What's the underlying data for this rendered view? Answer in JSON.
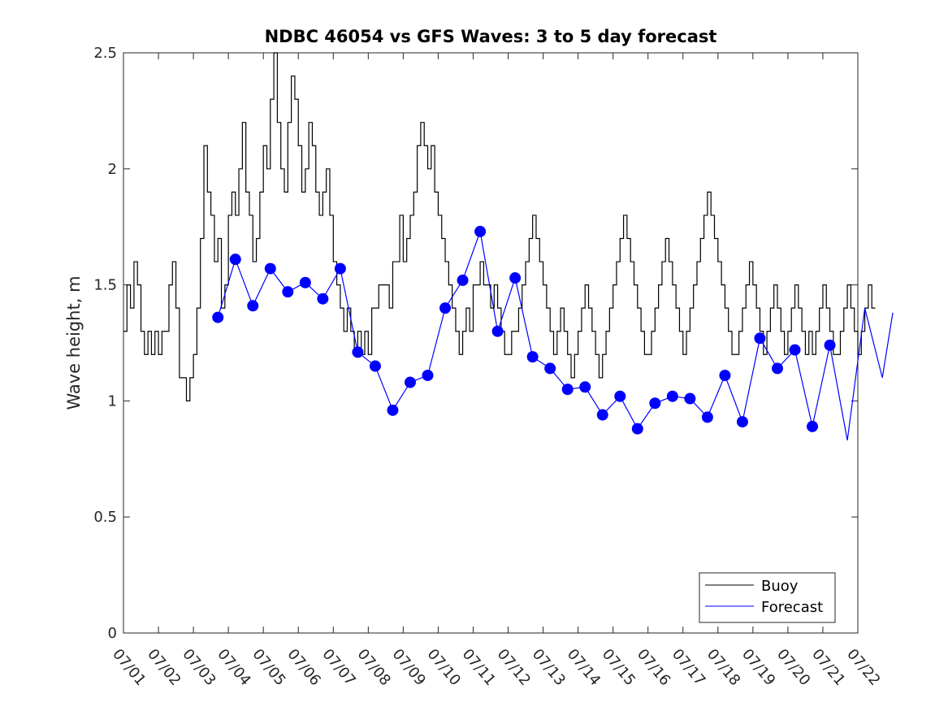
{
  "chart_data": {
    "type": "line",
    "title": "NDBC 46054 vs GFS Waves: 3 to 5 day forecast",
    "xlabel": "",
    "ylabel": "Wave height, m",
    "xlim": [
      "07/01",
      "07/22"
    ],
    "ylim": [
      0,
      2.5
    ],
    "x_ticks": [
      "07/01",
      "07/02",
      "07/03",
      "07/04",
      "07/05",
      "07/06",
      "07/07",
      "07/08",
      "07/09",
      "07/10",
      "07/11",
      "07/12",
      "07/13",
      "07/14",
      "07/15",
      "07/16",
      "07/17",
      "07/18",
      "07/19",
      "07/20",
      "07/21",
      "07/22"
    ],
    "y_ticks": [
      "0",
      "0.5",
      "1",
      "1.5",
      "2",
      "2.5"
    ],
    "grid": false,
    "legend_position": "bottom-right",
    "colors": {
      "buoy": "#000000",
      "forecast": "#0000ff"
    },
    "series": [
      {
        "name": "Buoy",
        "x": [
          0.0,
          0.1,
          0.2,
          0.3,
          0.4,
          0.5,
          0.6,
          0.7,
          0.8,
          0.9,
          1.0,
          1.1,
          1.2,
          1.3,
          1.4,
          1.5,
          1.6,
          1.7,
          1.8,
          1.9,
          2.0,
          2.1,
          2.2,
          2.3,
          2.4,
          2.5,
          2.6,
          2.7,
          2.8,
          2.9,
          3.0,
          3.1,
          3.2,
          3.3,
          3.4,
          3.5,
          3.6,
          3.7,
          3.8,
          3.9,
          4.0,
          4.1,
          4.2,
          4.3,
          4.4,
          4.5,
          4.6,
          4.7,
          4.8,
          4.9,
          5.0,
          5.1,
          5.2,
          5.3,
          5.4,
          5.5,
          5.6,
          5.7,
          5.8,
          5.9,
          6.0,
          6.1,
          6.2,
          6.3,
          6.4,
          6.5,
          6.6,
          6.7,
          6.8,
          6.9,
          7.0,
          7.1,
          7.2,
          7.3,
          7.4,
          7.5,
          7.6,
          7.7,
          7.8,
          7.9,
          8.0,
          8.1,
          8.2,
          8.3,
          8.4,
          8.5,
          8.6,
          8.7,
          8.8,
          8.9,
          9.0,
          9.1,
          9.2,
          9.3,
          9.4,
          9.5,
          9.6,
          9.7,
          9.8,
          9.9,
          10.0,
          10.1,
          10.2,
          10.3,
          10.4,
          10.5,
          10.6,
          10.7,
          10.8,
          10.9,
          11.0,
          11.1,
          11.2,
          11.3,
          11.4,
          11.5,
          11.6,
          11.7,
          11.8,
          11.9,
          12.0,
          12.1,
          12.2,
          12.3,
          12.4,
          12.5,
          12.6,
          12.7,
          12.8,
          12.9,
          13.0,
          13.1,
          13.2,
          13.3,
          13.4,
          13.5,
          13.6,
          13.7,
          13.8,
          13.9,
          14.0,
          14.1,
          14.2,
          14.3,
          14.4,
          14.5,
          14.6,
          14.7,
          14.8,
          14.9,
          15.0,
          15.1,
          15.2,
          15.3,
          15.4,
          15.5,
          15.6,
          15.7,
          15.8,
          15.9,
          16.0,
          16.1,
          16.2,
          16.3,
          16.4,
          16.5,
          16.6,
          16.7,
          16.8,
          16.9,
          17.0,
          17.1,
          17.2,
          17.3,
          17.4,
          17.5,
          17.6,
          17.7,
          17.8,
          17.9,
          18.0,
          18.1,
          18.2,
          18.3,
          18.4,
          18.5,
          18.6,
          18.7,
          18.8,
          18.9,
          19.0,
          19.1,
          19.2,
          19.3,
          19.4,
          19.5,
          19.6,
          19.7,
          19.8,
          19.9,
          20.0,
          20.1,
          20.2,
          20.3,
          20.4,
          20.5,
          20.6,
          20.7,
          20.8,
          20.9,
          21.0,
          21.1,
          21.2,
          21.3,
          21.4,
          21.5
        ],
        "y": [
          1.3,
          1.5,
          1.4,
          1.6,
          1.5,
          1.3,
          1.2,
          1.3,
          1.2,
          1.3,
          1.2,
          1.3,
          1.3,
          1.5,
          1.6,
          1.4,
          1.1,
          1.1,
          1.0,
          1.1,
          1.2,
          1.4,
          1.7,
          2.1,
          1.9,
          1.8,
          1.6,
          1.7,
          1.4,
          1.5,
          1.8,
          1.9,
          1.8,
          2.0,
          2.2,
          1.9,
          1.8,
          1.6,
          1.7,
          1.9,
          2.1,
          2.0,
          2.3,
          2.5,
          2.2,
          2.0,
          1.9,
          2.2,
          2.4,
          2.3,
          2.1,
          1.9,
          2.0,
          2.2,
          2.1,
          1.9,
          1.8,
          1.9,
          2.0,
          1.8,
          1.6,
          1.5,
          1.4,
          1.3,
          1.4,
          1.3,
          1.2,
          1.3,
          1.2,
          1.3,
          1.2,
          1.4,
          1.4,
          1.5,
          1.5,
          1.5,
          1.4,
          1.6,
          1.6,
          1.8,
          1.6,
          1.7,
          1.8,
          1.9,
          2.1,
          2.2,
          2.1,
          2.0,
          2.1,
          1.9,
          1.8,
          1.7,
          1.6,
          1.5,
          1.4,
          1.3,
          1.2,
          1.3,
          1.4,
          1.3,
          1.5,
          1.5,
          1.6,
          1.5,
          1.5,
          1.4,
          1.5,
          1.4,
          1.3,
          1.2,
          1.2,
          1.3,
          1.3,
          1.4,
          1.5,
          1.6,
          1.7,
          1.8,
          1.7,
          1.6,
          1.5,
          1.4,
          1.3,
          1.2,
          1.3,
          1.4,
          1.3,
          1.2,
          1.1,
          1.2,
          1.3,
          1.4,
          1.5,
          1.4,
          1.3,
          1.2,
          1.1,
          1.2,
          1.3,
          1.4,
          1.5,
          1.6,
          1.7,
          1.8,
          1.7,
          1.6,
          1.5,
          1.4,
          1.3,
          1.2,
          1.2,
          1.3,
          1.4,
          1.5,
          1.6,
          1.7,
          1.6,
          1.5,
          1.4,
          1.3,
          1.2,
          1.3,
          1.4,
          1.5,
          1.6,
          1.7,
          1.8,
          1.9,
          1.8,
          1.7,
          1.6,
          1.5,
          1.4,
          1.3,
          1.2,
          1.2,
          1.3,
          1.4,
          1.5,
          1.6,
          1.5,
          1.4,
          1.3,
          1.2,
          1.3,
          1.4,
          1.5,
          1.4,
          1.3,
          1.2,
          1.3,
          1.4,
          1.5,
          1.4,
          1.3,
          1.2,
          1.3,
          1.2,
          1.3,
          1.4,
          1.5,
          1.4,
          1.3,
          1.2,
          1.2,
          1.3,
          1.4,
          1.5,
          1.4,
          1.3,
          1.2,
          1.3,
          1.4,
          1.5,
          1.4,
          1.4
        ]
      },
      {
        "name": "Forecast",
        "x": [
          2.7,
          3.2,
          3.7,
          4.2,
          4.7,
          5.2,
          5.7,
          6.2,
          6.7,
          7.2,
          7.7,
          8.2,
          8.7,
          9.2,
          9.7,
          10.2,
          10.7,
          11.2,
          11.7,
          12.2,
          12.7,
          13.2,
          13.7,
          14.2,
          14.7,
          15.2,
          15.7,
          16.2,
          16.7,
          17.2,
          17.7,
          18.2,
          18.7,
          19.2,
          19.7,
          20.2,
          20.7,
          21.2,
          21.7,
          22.0
        ],
        "y": [
          1.36,
          1.61,
          1.41,
          1.57,
          1.47,
          1.51,
          1.44,
          1.57,
          1.21,
          1.15,
          0.96,
          1.08,
          1.11,
          1.4,
          1.52,
          1.73,
          1.3,
          1.53,
          1.19,
          1.14,
          1.05,
          1.06,
          0.94,
          1.02,
          0.88,
          0.99,
          1.02,
          1.01,
          0.93,
          1.11,
          0.91,
          1.27,
          1.14,
          1.22,
          0.89,
          1.24,
          0.83,
          1.4,
          1.1,
          1.38
        ]
      }
    ],
    "forecast_markers": {
      "x": [
        2.7,
        3.2,
        3.7,
        4.2,
        4.7,
        5.2,
        5.7,
        6.2,
        6.7,
        7.2,
        7.7,
        8.2,
        8.7,
        9.2,
        9.7,
        10.2,
        10.7,
        11.2,
        11.7,
        12.2,
        12.7,
        13.2,
        13.7,
        14.2,
        14.7,
        15.2,
        15.7,
        16.2,
        16.7,
        17.2,
        17.7,
        18.2,
        18.7,
        19.2,
        19.7,
        20.2
      ],
      "y": [
        1.36,
        1.61,
        1.41,
        1.57,
        1.47,
        1.51,
        1.44,
        1.57,
        1.21,
        1.15,
        0.96,
        1.08,
        1.11,
        1.4,
        1.52,
        1.73,
        1.3,
        1.53,
        1.19,
        1.14,
        1.05,
        1.06,
        0.94,
        1.02,
        0.88,
        0.99,
        1.02,
        1.01,
        0.93,
        1.11,
        0.91,
        1.27,
        1.14,
        1.22,
        0.89,
        1.24
      ]
    }
  }
}
